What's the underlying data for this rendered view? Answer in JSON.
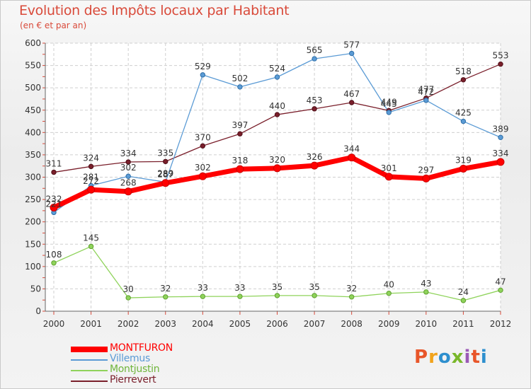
{
  "title": "Evolution des Impôts locaux par Habitant",
  "subtitle": "(en € et par an)",
  "logo": {
    "text": "Proxiti",
    "colors": [
      "#e8562a",
      "#f1a31c",
      "#2e8fce",
      "#79b72a",
      "#9b59b6",
      "#e8562a",
      "#2e8fce"
    ]
  },
  "legend": [
    {
      "label": "MONTFURON",
      "color": "#ff0000"
    },
    {
      "label": "Villemus",
      "color": "#5b9bd5"
    },
    {
      "label": "Montjustin",
      "color": "#8fd35b"
    },
    {
      "label": "Pierrevert",
      "color": "#7a1f2b"
    }
  ],
  "chart_data": {
    "type": "line",
    "title": "Evolution des Impôts locaux par Habitant",
    "subtitle": "(en € et par an)",
    "xlabel": "",
    "ylabel": "",
    "x": [
      "2000",
      "2001",
      "2002",
      "2003",
      "2004",
      "2005",
      "2006",
      "2007",
      "2008",
      "2009",
      "2010",
      "2011",
      "2012"
    ],
    "ylim": [
      0,
      600
    ],
    "yticks": [
      0,
      50,
      100,
      150,
      200,
      250,
      300,
      350,
      400,
      450,
      500,
      550,
      600
    ],
    "grid": true,
    "series": [
      {
        "name": "MONTFURON",
        "color": "#ff0000",
        "values": [
          232,
          272,
          268,
          287,
          302,
          318,
          320,
          326,
          344,
          301,
          297,
          319,
          334
        ]
      },
      {
        "name": "Villemus",
        "color": "#5b9bd5",
        "values": [
          221,
          281,
          302,
          289,
          529,
          502,
          524,
          565,
          577,
          445,
          472,
          425,
          389
        ]
      },
      {
        "name": "Montjustin",
        "color": "#8fd35b",
        "values": [
          108,
          145,
          30,
          32,
          33,
          33,
          35,
          35,
          32,
          40,
          43,
          24,
          47
        ]
      },
      {
        "name": "Pierrevert",
        "color": "#7a1f2b",
        "values": [
          311,
          324,
          334,
          335,
          370,
          397,
          440,
          453,
          467,
          449,
          477,
          518,
          553
        ]
      }
    ]
  }
}
